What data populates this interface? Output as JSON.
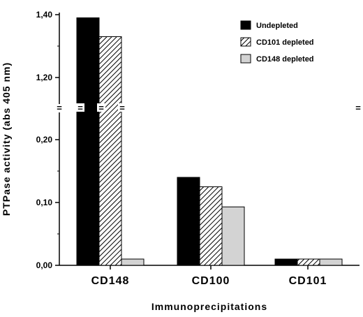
{
  "chart_data": {
    "type": "bar",
    "title": "",
    "xlabel": "Immunoprecipitations",
    "ylabel": "PTPase  activity  (abs  405  nm)",
    "categories": [
      "CD148",
      "CD100",
      "CD101"
    ],
    "series": [
      {
        "name": "Undepleted",
        "values": [
          1.39,
          0.14,
          0.01
        ],
        "fill": "#000000",
        "pattern": "solid"
      },
      {
        "name": "CD101 depleted",
        "values": [
          1.33,
          0.125,
          0.01
        ],
        "fill": "hatch",
        "pattern": "diagonal-hatch"
      },
      {
        "name": "CD148 depleted",
        "values": [
          0.01,
          0.093,
          0.01
        ],
        "fill": "#d3d3d3",
        "pattern": "solid"
      }
    ],
    "axis_break": {
      "lower_max": 0.25,
      "upper_min": 1.1
    },
    "lower_ticks": [
      "0,00",
      "0,10",
      "0,20"
    ],
    "upper_ticks": [
      "1,20",
      "1,40"
    ],
    "lower_tick_values": [
      0.0,
      0.1,
      0.2
    ],
    "upper_tick_values": [
      1.2,
      1.4
    ],
    "break_symbol": "=",
    "legend_placement": "top-right",
    "grid": false
  }
}
